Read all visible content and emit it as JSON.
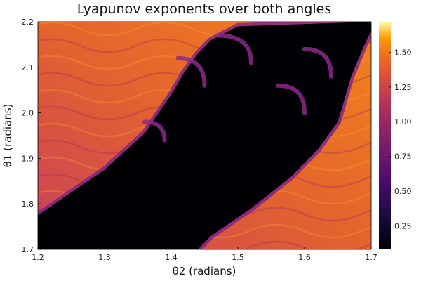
{
  "chart_data": {
    "type": "heatmap",
    "title": "Lyapunov exponents over both angles",
    "xlabel": "θ2 (radians)",
    "ylabel": "θ1 (radians)",
    "xlim": [
      1.2,
      1.7
    ],
    "ylim": [
      1.7,
      2.2
    ],
    "x_ticks": [
      "1.2",
      "1.3",
      "1.4",
      "1.5",
      "1.6",
      "1.7"
    ],
    "y_ticks": [
      "1.7",
      "1.8",
      "1.9",
      "2.0",
      "2.1",
      "2.2"
    ],
    "colorbar": {
      "colormap": "inferno",
      "range": [
        0.08,
        1.72
      ],
      "ticks": [
        "0.25",
        "0.50",
        "0.75",
        "1.00",
        "1.25",
        "1.50"
      ]
    },
    "low_region": {
      "value": 0.1,
      "left_boundary": [
        [
          1.2,
          1.775
        ],
        [
          1.3,
          1.875
        ],
        [
          1.36,
          1.955
        ],
        [
          1.4,
          2.04
        ],
        [
          1.42,
          2.09
        ],
        [
          1.44,
          2.13
        ],
        [
          1.46,
          2.16
        ],
        [
          1.5,
          2.19
        ]
      ],
      "bottom_boundary": [
        [
          1.44,
          1.7
        ],
        [
          1.46,
          1.73
        ],
        [
          1.52,
          1.79
        ],
        [
          1.58,
          1.86
        ],
        [
          1.62,
          1.92
        ],
        [
          1.65,
          1.98
        ],
        [
          1.67,
          2.08
        ],
        [
          1.69,
          2.15
        ],
        [
          1.7,
          2.18
        ]
      ]
    },
    "high_region_value": 1.05
  }
}
